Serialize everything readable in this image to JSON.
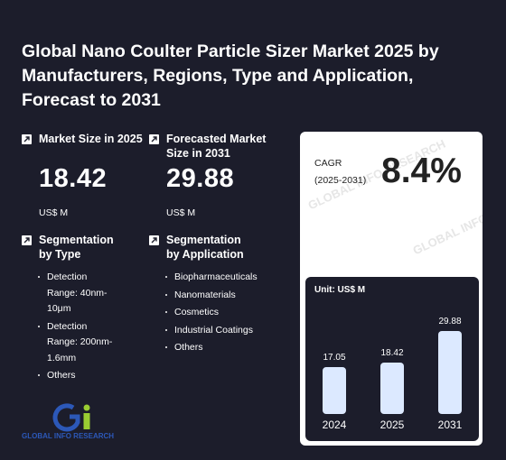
{
  "title": "Global Nano Coulter Particle Sizer Market 2025 by Manufacturers, Regions, Type and Application, Forecast to 2031",
  "market_size": {
    "label": "Market Size in 2025",
    "value": "18.42",
    "unit": "US$ M",
    "icon": "trend-arrow-icon"
  },
  "forecast_size": {
    "label": "Forecasted Market Size in 2031",
    "value": "29.88",
    "unit": "US$ M",
    "icon": "trend-arrow-icon"
  },
  "segmentation_type": {
    "label": "Segmentation by Type",
    "items": [
      "Detection Range: 40nm-10μm",
      "Detection Range: 200nm-1.6mm",
      "Others"
    ]
  },
  "segmentation_application": {
    "label": "Segmentation by Application",
    "items": [
      "Biopharmaceuticals",
      "Nanomaterials",
      "Cosmetics",
      "Industrial Coatings",
      "Others"
    ]
  },
  "cagr": {
    "label_line1": "CAGR",
    "label_line2": "(2025-2031)",
    "value": "8.4%"
  },
  "watermark": "GLOBAL INFO RESEARCH",
  "logo": {
    "text": "GLOBAL INFO RESEARCH"
  },
  "colors": {
    "background": "#1c1d2b",
    "bar": "#dce9ff",
    "logo_blue": "#2c58b8",
    "logo_green": "#9acd32"
  },
  "chart_data": {
    "type": "bar",
    "unit_label": "Unit: US$ M",
    "categories": [
      "2024",
      "2025",
      "2031"
    ],
    "values": [
      17.05,
      18.42,
      29.88
    ],
    "value_labels": [
      "17.05",
      "18.42",
      "29.88"
    ]
  }
}
